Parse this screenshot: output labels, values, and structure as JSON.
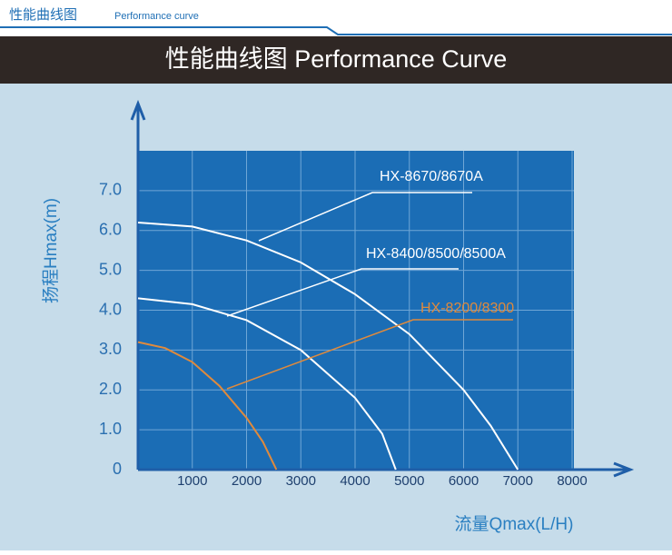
{
  "header": {
    "tab_title": "性能曲线图",
    "tab_subtitle": "Performance curve"
  },
  "chart_data": {
    "type": "line",
    "title": "性能曲线图 Performance Curve",
    "x_label": "流量Qmax(L/H)",
    "y_label": "扬程Hmax(m)",
    "xlim": [
      0,
      8000
    ],
    "ylim": [
      0,
      8
    ],
    "xticks": [
      1000,
      2000,
      3000,
      4000,
      5000,
      6000,
      7000,
      8000
    ],
    "yticks": [
      0,
      {
        "value": 1,
        "label": "1.0"
      },
      {
        "value": 2,
        "label": "2.0"
      },
      {
        "value": 3,
        "label": "3.0"
      },
      {
        "value": 4,
        "label": "4.0"
      },
      {
        "value": 5,
        "label": "5.0"
      },
      {
        "value": 6,
        "label": "6.0"
      },
      {
        "value": 7,
        "label": "7.0"
      }
    ],
    "grid": true,
    "series": [
      {
        "name": "HX-8670/8670A",
        "color": "#ffffff",
        "x": [
          0,
          1000,
          2000,
          3000,
          4000,
          5000,
          6000,
          6500,
          7000
        ],
        "values": [
          6.2,
          6.1,
          5.75,
          5.2,
          4.4,
          3.4,
          2.0,
          1.1,
          0
        ]
      },
      {
        "name": "HX-8400/8500/8500A",
        "color": "#ffffff",
        "x": [
          0,
          1000,
          2000,
          3000,
          4000,
          4500,
          4750
        ],
        "values": [
          4.3,
          4.15,
          3.75,
          3.0,
          1.8,
          0.9,
          0
        ]
      },
      {
        "name": "HX-8200/8300",
        "color": "#e08a3c",
        "x": [
          0,
          500,
          1000,
          1500,
          2000,
          2300,
          2550
        ],
        "values": [
          3.2,
          3.05,
          2.7,
          2.1,
          1.3,
          0.7,
          0
        ]
      }
    ]
  }
}
